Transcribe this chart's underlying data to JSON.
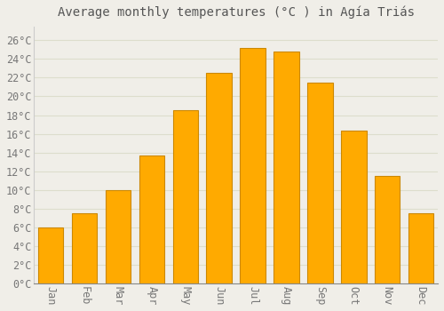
{
  "title": "Average monthly temperatures (°C ) in Agía Triás",
  "months": [
    "Jan",
    "Feb",
    "Mar",
    "Apr",
    "May",
    "Jun",
    "Jul",
    "Aug",
    "Sep",
    "Oct",
    "Nov",
    "Dec"
  ],
  "values": [
    6.0,
    7.5,
    10.0,
    13.7,
    18.5,
    22.5,
    25.2,
    24.8,
    21.5,
    16.3,
    11.5,
    7.5
  ],
  "bar_color": "#FFAA00",
  "bar_edge_color": "#CC8800",
  "background_color": "#F0EEE8",
  "plot_bg_color": "#F0EEE8",
  "grid_color": "#DDDDCC",
  "yticks": [
    0,
    2,
    4,
    6,
    8,
    10,
    12,
    14,
    16,
    18,
    20,
    22,
    24,
    26
  ],
  "ylim": [
    0,
    27.5
  ],
  "title_fontsize": 10,
  "tick_fontsize": 8.5,
  "tick_color": "#777777",
  "title_color": "#555555",
  "bar_width": 0.75
}
